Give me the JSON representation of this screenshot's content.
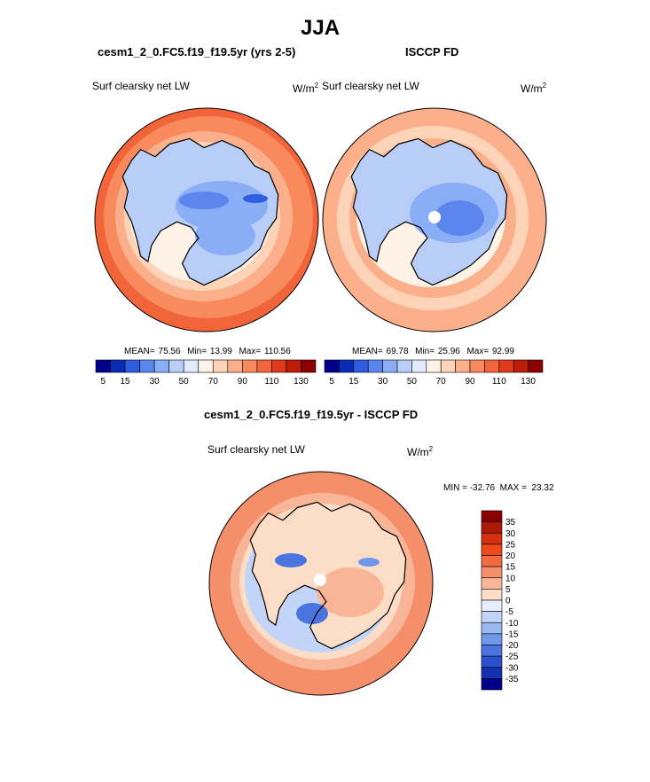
{
  "page_title": "JJA",
  "panels": [
    {
      "title": "cesm1_2_0.FC5.f19_f19.5yr (yrs 2-5)",
      "left_label": "Surf clearsky net LW",
      "units": "W/m",
      "units_sup": "2",
      "stats": {
        "mean_label": "MEAN=",
        "mean": "75.56",
        "min_label": "Min=",
        "min": "13.99",
        "max_label": "Max=",
        "max": "110.56"
      }
    },
    {
      "title": "ISCCP FD",
      "left_label": "Surf clearsky net LW",
      "units": "W/m",
      "units_sup": "2",
      "stats": {
        "mean_label": "MEAN=",
        "mean": "69.78",
        "min_label": "Min=",
        "min": "25.96",
        "max_label": "Max=",
        "max": "92.99"
      }
    }
  ],
  "diff_panel": {
    "title": "cesm1_2_0.FC5.f19_f19.5yr - ISCCP FD",
    "left_label": "Surf clearsky net LW",
    "units": "W/m",
    "units_sup": "2",
    "minmax": "MIN = -32.76  MAX =  23.32"
  },
  "chart_data": [
    {
      "type": "heatmap",
      "projection": "south polar stereographic",
      "title": "cesm1_2_0.FC5.f19_f19.5yr (yrs 2-5)",
      "variable": "Surf clearsky net LW",
      "units": "W/m2",
      "mean": 75.56,
      "min": 13.99,
      "max": 110.56,
      "colorbar_ticks": [
        "5",
        "15",
        "30",
        "50",
        "70",
        "90",
        "110",
        "130"
      ]
    },
    {
      "type": "heatmap",
      "projection": "south polar stereographic",
      "title": "ISCCP FD",
      "variable": "Surf clearsky net LW",
      "units": "W/m2",
      "mean": 69.78,
      "min": 25.96,
      "max": 92.99,
      "colorbar_ticks": [
        "5",
        "15",
        "30",
        "50",
        "70",
        "90",
        "110",
        "130"
      ]
    },
    {
      "type": "heatmap",
      "projection": "south polar stereographic",
      "title": "cesm1_2_0.FC5.f19_f19.5yr - ISCCP FD",
      "variable": "Surf clearsky net LW",
      "units": "W/m2",
      "min": -32.76,
      "max": 23.32,
      "colorbar_ticks": [
        "35",
        "30",
        "25",
        "20",
        "15",
        "10",
        "5",
        "0",
        "-5",
        "-10",
        "-15",
        "-20",
        "-25",
        "-30",
        "-35"
      ]
    }
  ],
  "colors": {
    "abs_scale": [
      "#00008b",
      "#0a2ab8",
      "#2e5de0",
      "#5b86ee",
      "#8aaef5",
      "#b8cdf8",
      "#e1ebfc",
      "#fff2e6",
      "#fdd4b8",
      "#fbb08b",
      "#f88a5e",
      "#f2643a",
      "#e03a1a",
      "#bf1c08",
      "#8b0000"
    ],
    "diff_scale": [
      "#8b0000",
      "#b01808",
      "#d43010",
      "#f04818",
      "#f26a40",
      "#f58f6a",
      "#f9b597",
      "#fcddc8",
      "#e4eefc",
      "#c2d5f8",
      "#9ab8f2",
      "#7098ea",
      "#4a75e0",
      "#2a50d0",
      "#1530b0",
      "#00008b"
    ],
    "land_outline": "#000000"
  }
}
